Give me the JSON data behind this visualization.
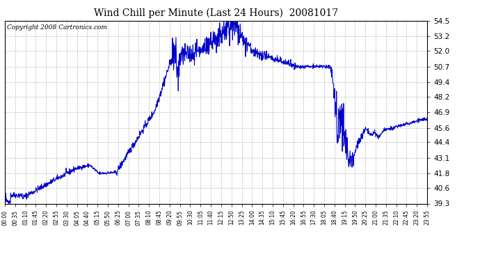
{
  "title": "Wind Chill per Minute (Last 24 Hours)  20081017",
  "copyright": "Copyright 2008 Cartronics.com",
  "line_color": "#0000CC",
  "bg_color": "#ffffff",
  "plot_bg_color": "#ffffff",
  "grid_color": "#aaaaaa",
  "ylim": [
    39.3,
    54.5
  ],
  "yticks": [
    39.3,
    40.6,
    41.8,
    43.1,
    44.4,
    45.6,
    46.9,
    48.2,
    49.4,
    50.7,
    52.0,
    53.2,
    54.5
  ],
  "xtick_labels": [
    "00:00",
    "00:35",
    "01:10",
    "01:45",
    "02:20",
    "02:55",
    "03:30",
    "04:05",
    "04:40",
    "05:15",
    "05:50",
    "06:25",
    "07:00",
    "07:35",
    "08:10",
    "08:45",
    "09:20",
    "09:55",
    "10:30",
    "11:05",
    "11:40",
    "12:15",
    "12:50",
    "13:25",
    "14:00",
    "14:35",
    "15:10",
    "15:45",
    "16:20",
    "16:55",
    "17:30",
    "18:05",
    "18:40",
    "19:15",
    "19:50",
    "20:25",
    "21:00",
    "21:35",
    "22:10",
    "22:45",
    "23:20",
    "23:55"
  ],
  "num_points": 1440
}
